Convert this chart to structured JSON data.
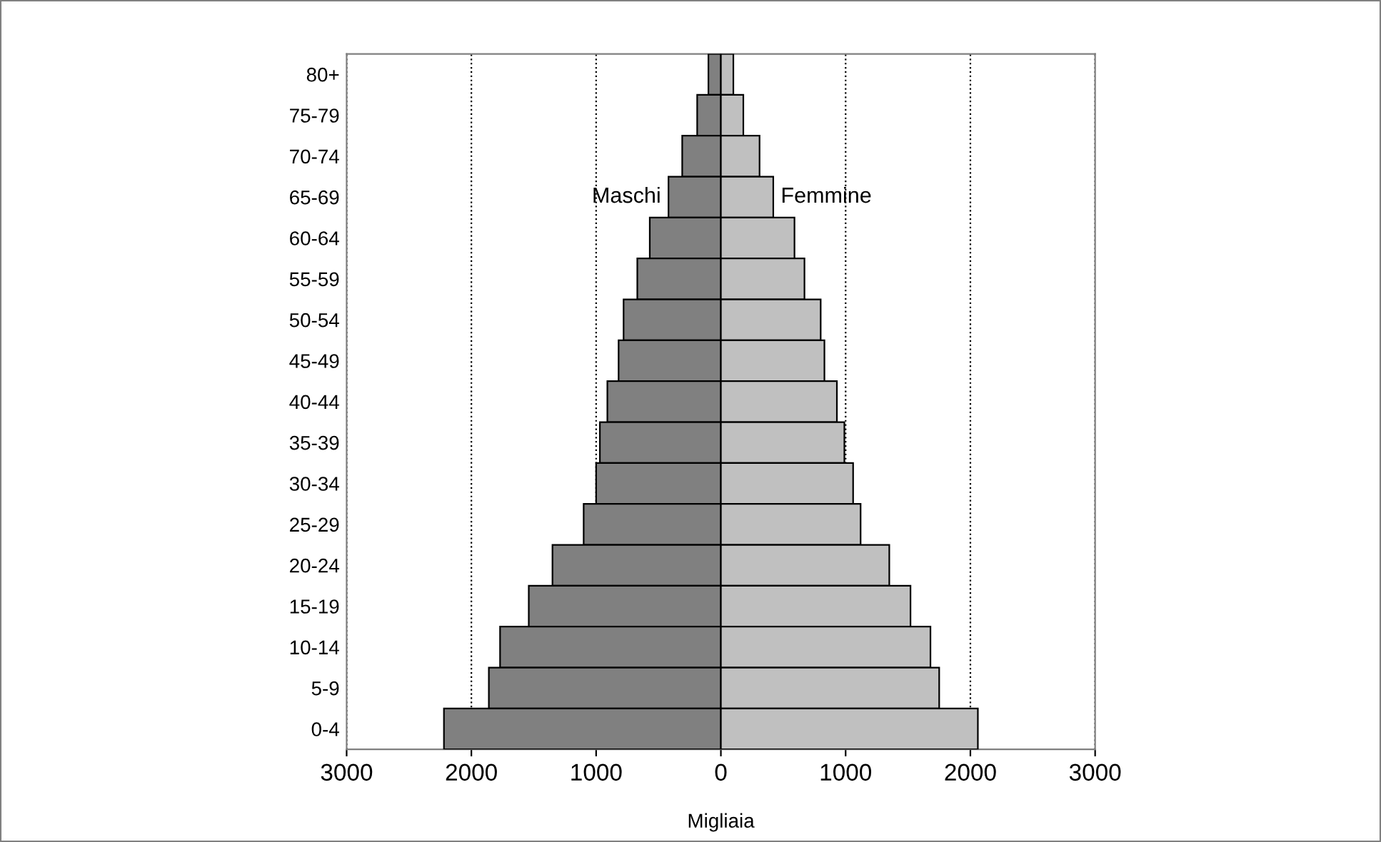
{
  "chart_data": {
    "type": "bar",
    "orientation": "horizontal",
    "xlabel": "Migliaia",
    "categories": [
      "80+",
      "75-79",
      "70-74",
      "65-69",
      "60-64",
      "55-59",
      "50-54",
      "45-49",
      "40-44",
      "35-39",
      "30-34",
      "25-29",
      "20-24",
      "15-19",
      "10-14",
      "5-9",
      "0-4"
    ],
    "series": [
      {
        "name": "Maschi",
        "color": "#808080",
        "values": [
          -100,
          -190,
          -310,
          -420,
          -570,
          -670,
          -780,
          -820,
          -910,
          -970,
          -1000,
          -1100,
          -1350,
          -1540,
          -1770,
          -1860,
          -2220
        ]
      },
      {
        "name": "Femmine",
        "color": "#c0c0c0",
        "values": [
          100,
          180,
          310,
          420,
          590,
          670,
          800,
          830,
          930,
          990,
          1060,
          1120,
          1350,
          1520,
          1680,
          1750,
          2060
        ]
      }
    ],
    "xlim": [
      -3000,
      3000
    ],
    "xticks": [
      {
        "value": -3000,
        "label": "3000"
      },
      {
        "value": -2000,
        "label": "2000"
      },
      {
        "value": -1000,
        "label": "1000"
      },
      0,
      1000,
      2000,
      3000
    ],
    "stacked": true,
    "grid": "x",
    "line_style": "dotted",
    "legend": false
  }
}
